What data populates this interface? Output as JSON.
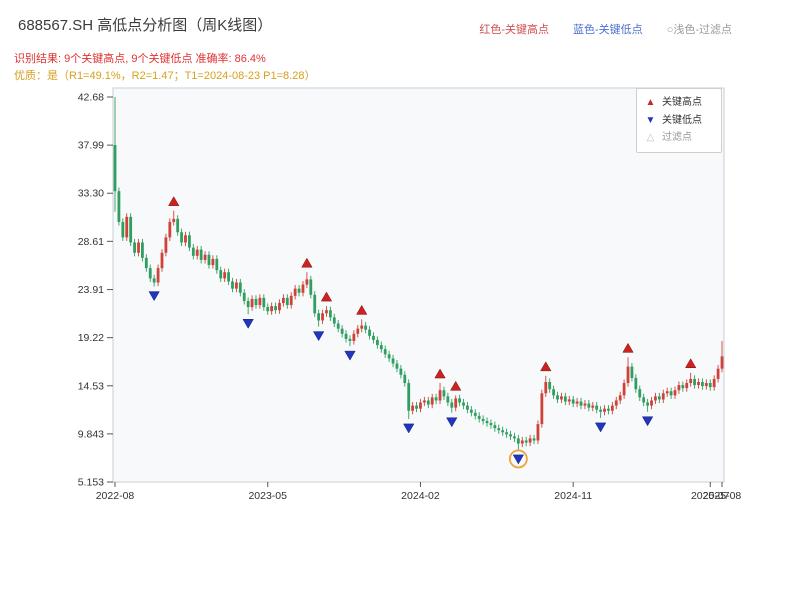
{
  "header": {
    "title": "688567.SH 高低点分析图（周K线图）"
  },
  "annotations": {
    "result_line": "识别结果: 9个关键高点, 9个关键低点  准确率: 86.4%",
    "quality_line": "优质：是（R1=49.1%，R2=1.47；T1=2024-08-23 P1=8.28）"
  },
  "top_legend": {
    "high": "红色-关键高点",
    "low": "蓝色-关键低点",
    "filter": "○浅色-过滤点"
  },
  "chart_legend": {
    "high": "关键高点",
    "low": "关键低点",
    "filter": "过滤点"
  },
  "chart_data": {
    "type": "candlestick",
    "title": "688567.SH 高低点分析图（周K线图）",
    "frequency": "weekly",
    "ylim": [
      5.153,
      42.68
    ],
    "y_ticks": [
      "42.68",
      "37.99",
      "33.30",
      "28.61",
      "23.91",
      "19.22",
      "14.53",
      "9.843",
      "5.153"
    ],
    "x_ticks": [
      {
        "label": "2022-08",
        "index": 0
      },
      {
        "label": "2023-05",
        "index": 39
      },
      {
        "label": "2024-02",
        "index": 78
      },
      {
        "label": "2024-11",
        "index": 117
      },
      {
        "label": "2025-07",
        "index": 152
      },
      {
        "label": "2025-08",
        "index": 155
      }
    ],
    "first_open": 38.0,
    "wick": 0.35,
    "closes": [
      33.5,
      30.5,
      29.0,
      31.0,
      28.5,
      27.5,
      28.5,
      27.0,
      26.0,
      25.0,
      24.6,
      26.0,
      27.5,
      29.0,
      30.5,
      30.8,
      29.5,
      28.5,
      29.2,
      28.0,
      27.2,
      27.8,
      26.8,
      27.3,
      26.3,
      26.9,
      25.8,
      25.0,
      25.6,
      24.7,
      24.0,
      24.6,
      23.6,
      22.8,
      22.2,
      23.0,
      22.4,
      23.1,
      22.2,
      21.8,
      22.3,
      21.9,
      22.6,
      23.1,
      22.4,
      23.3,
      24.0,
      23.6,
      24.4,
      24.9,
      23.4,
      21.6,
      20.9,
      21.6,
      21.9,
      21.2,
      20.6,
      20.1,
      19.6,
      19.1,
      18.9,
      19.6,
      20.1,
      20.4,
      20.0,
      19.4,
      19.0,
      18.5,
      18.1,
      17.6,
      17.2,
      16.7,
      16.2,
      15.6,
      14.8,
      12.1,
      12.6,
      12.3,
      12.9,
      13.1,
      12.7,
      13.4,
      13.1,
      14.1,
      13.5,
      12.9,
      12.4,
      13.3,
      12.9,
      12.6,
      12.2,
      11.9,
      11.6,
      11.3,
      11.1,
      10.9,
      10.7,
      10.4,
      10.2,
      10.0,
      9.8,
      9.6,
      9.4,
      8.9,
      9.2,
      9.0,
      9.4,
      9.2,
      10.8,
      13.8,
      14.9,
      14.2,
      13.6,
      13.2,
      13.5,
      13.0,
      13.2,
      12.8,
      13.0,
      12.6,
      12.8,
      12.4,
      12.6,
      12.2,
      12.0,
      12.3,
      12.1,
      12.6,
      13.1,
      13.6,
      14.8,
      16.4,
      15.3,
      14.2,
      13.4,
      12.9,
      12.6,
      13.1,
      13.5,
      13.2,
      13.8,
      14.0,
      13.6,
      14.1,
      14.6,
      14.3,
      14.8,
      15.2,
      14.6,
      14.9,
      14.5,
      14.8,
      14.4,
      15.2,
      16.2,
      17.4
    ],
    "overrides": {
      "0": {
        "h": 42.68,
        "l": 31.5
      },
      "10": {
        "l": 24.2
      },
      "15": {
        "h": 31.6
      },
      "34": {
        "l": 21.5
      },
      "49": {
        "h": 25.6
      },
      "52": {
        "l": 20.3
      },
      "54": {
        "h": 22.3
      },
      "60": {
        "l": 18.4
      },
      "63": {
        "h": 21.0
      },
      "75": {
        "l": 11.3
      },
      "83": {
        "h": 14.8
      },
      "86": {
        "l": 11.9
      },
      "87": {
        "h": 13.6
      },
      "103": {
        "l": 8.28
      },
      "110": {
        "h": 15.5
      },
      "124": {
        "l": 11.4
      },
      "131": {
        "h": 17.3
      },
      "136": {
        "l": 12.0
      },
      "147": {
        "h": 15.8
      },
      "155": {
        "h": 18.9
      }
    },
    "key_highs": [
      15,
      49,
      54,
      63,
      83,
      87,
      110,
      131,
      147
    ],
    "key_lows": [
      10,
      34,
      52,
      60,
      75,
      86,
      103,
      124,
      136
    ],
    "filtered_point": {
      "index": 103,
      "price": 8.28
    },
    "colors": {
      "up": "#cf423a",
      "down": "#2f9e60",
      "key_high": "#cc2222",
      "key_low": "#2236bb",
      "filter": "#f0a23c",
      "plot_bg": "#f7f9fa",
      "frame": "#c8cfd6",
      "tick": "#555555",
      "tick_label": "#333333"
    }
  }
}
